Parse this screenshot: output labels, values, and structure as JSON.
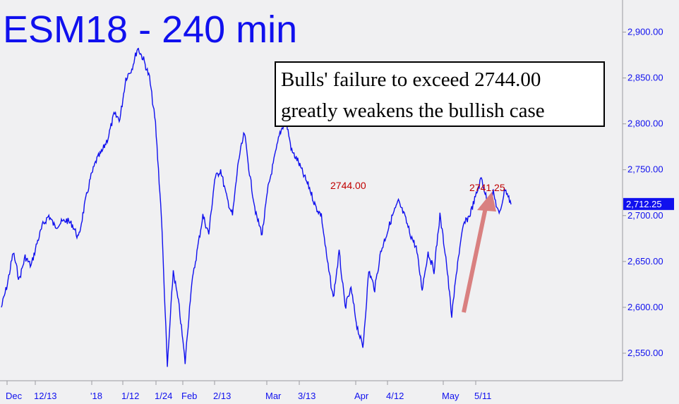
{
  "colors": {
    "background": "#f0f0f2",
    "price_line": "#1010ee",
    "axis_text": "#1010ee",
    "peak_label": "#c00000",
    "arrow": "#d98080",
    "last_price_badge": "#1010ee"
  },
  "chart_data": {
    "type": "line",
    "title": "ESM18 - 240 min",
    "ylim": [
      2520,
      2935
    ],
    "y_ticks": [
      "2,550.00",
      "2,600.00",
      "2,650.00",
      "2,700.00",
      "2,750.00",
      "2,800.00",
      "2,850.00",
      "2,900.00"
    ],
    "x_ticks": [
      "Dec",
      "12/13",
      "'18",
      "1/12",
      "1/24",
      "Feb",
      "2/13",
      "Mar",
      "3/13",
      "Apr",
      "4/12",
      "May",
      "5/11"
    ],
    "grid": false,
    "annotations": [
      {
        "text": "2744.00",
        "value": 2744.0
      },
      {
        "text": "2741.25",
        "value": 2741.25
      }
    ],
    "note": [
      "Bulls' failure to exceed 2744.00",
      "greatly weakens the bullish case"
    ],
    "last_price": "2,712.25",
    "series": [
      {
        "values": [
          2600,
          2625,
          2660,
          2630,
          2655,
          2645,
          2670,
          2690,
          2700,
          2688,
          2692,
          2695,
          2690,
          2675,
          2710,
          2740,
          2760,
          2770,
          2785,
          2810,
          2805,
          2850,
          2860,
          2883,
          2870,
          2850,
          2800,
          2700,
          2535,
          2640,
          2600,
          2540,
          2620,
          2660,
          2700,
          2680,
          2740,
          2750,
          2720,
          2700,
          2760,
          2790,
          2740,
          2700,
          2680,
          2730,
          2760,
          2790,
          2805,
          2770,
          2760,
          2744,
          2730,
          2710,
          2700,
          2650,
          2610,
          2660,
          2600,
          2620,
          2580,
          2556,
          2640,
          2620,
          2660,
          2680,
          2700,
          2715,
          2700,
          2680,
          2665,
          2620,
          2660,
          2640,
          2700,
          2655,
          2590,
          2650,
          2690,
          2700,
          2720,
          2741.25,
          2715,
          2725,
          2700,
          2730,
          2712.25
        ]
      }
    ]
  }
}
